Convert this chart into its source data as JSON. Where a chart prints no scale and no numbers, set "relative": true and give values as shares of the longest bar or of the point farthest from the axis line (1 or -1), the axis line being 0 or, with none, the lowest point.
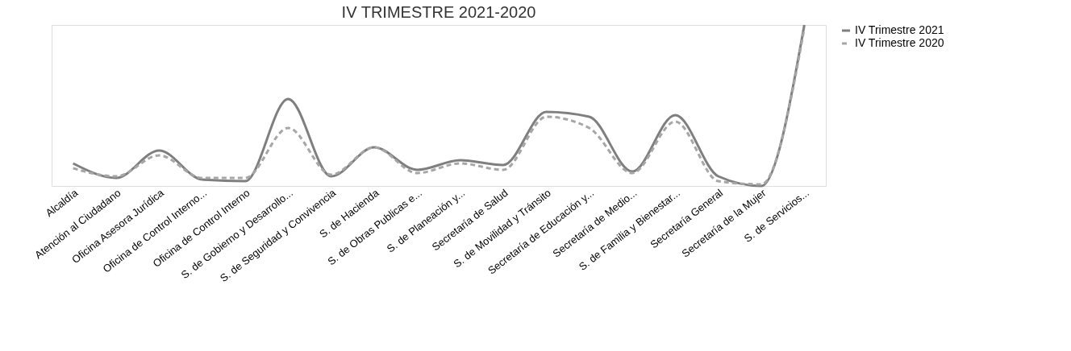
{
  "chart_data": {
    "type": "line",
    "title": "IV TRIMESTRE 2021-2020",
    "relative": true,
    "legend": "right",
    "marker": "none",
    "categories": [
      "Alcaldía",
      "Atención al Ciudadano",
      "Oficina Asesora Jurídica",
      "Oficina de Control Interno...",
      "Oficina de Control Interno",
      "S. de Gobierno y Desarrollo...",
      "S. de Seguridad y Convivencia",
      "S. de Hacienda",
      "S. de Obras Publicas e...",
      "S. de Planeación y...",
      "Secretaría de Salud",
      "S. de Movilidad y Tránsito",
      "Secretaría de Educación y...",
      "Secretaría de Medio...",
      "S. de Familia y Bienestar...",
      "Secretaría General",
      "Secretaría de la Mujer",
      "S. de Servicios..."
    ],
    "series": [
      {
        "name": "IV Trimestre 2021",
        "color": "#7f7f7f",
        "line_style": "solid",
        "values": [
          0.14,
          0.05,
          0.22,
          0.04,
          0.03,
          0.54,
          0.06,
          0.24,
          0.1,
          0.16,
          0.13,
          0.46,
          0.43,
          0.09,
          0.44,
          0.06,
          0.0,
          1.0
        ]
      },
      {
        "name": "IV Trimestre 2020",
        "color": "#a6a6a6",
        "line_style": "dashed",
        "values": [
          0.11,
          0.06,
          0.19,
          0.05,
          0.05,
          0.36,
          0.07,
          0.24,
          0.08,
          0.14,
          0.1,
          0.43,
          0.36,
          0.08,
          0.4,
          0.03,
          0.01,
          0.98
        ]
      }
    ]
  }
}
